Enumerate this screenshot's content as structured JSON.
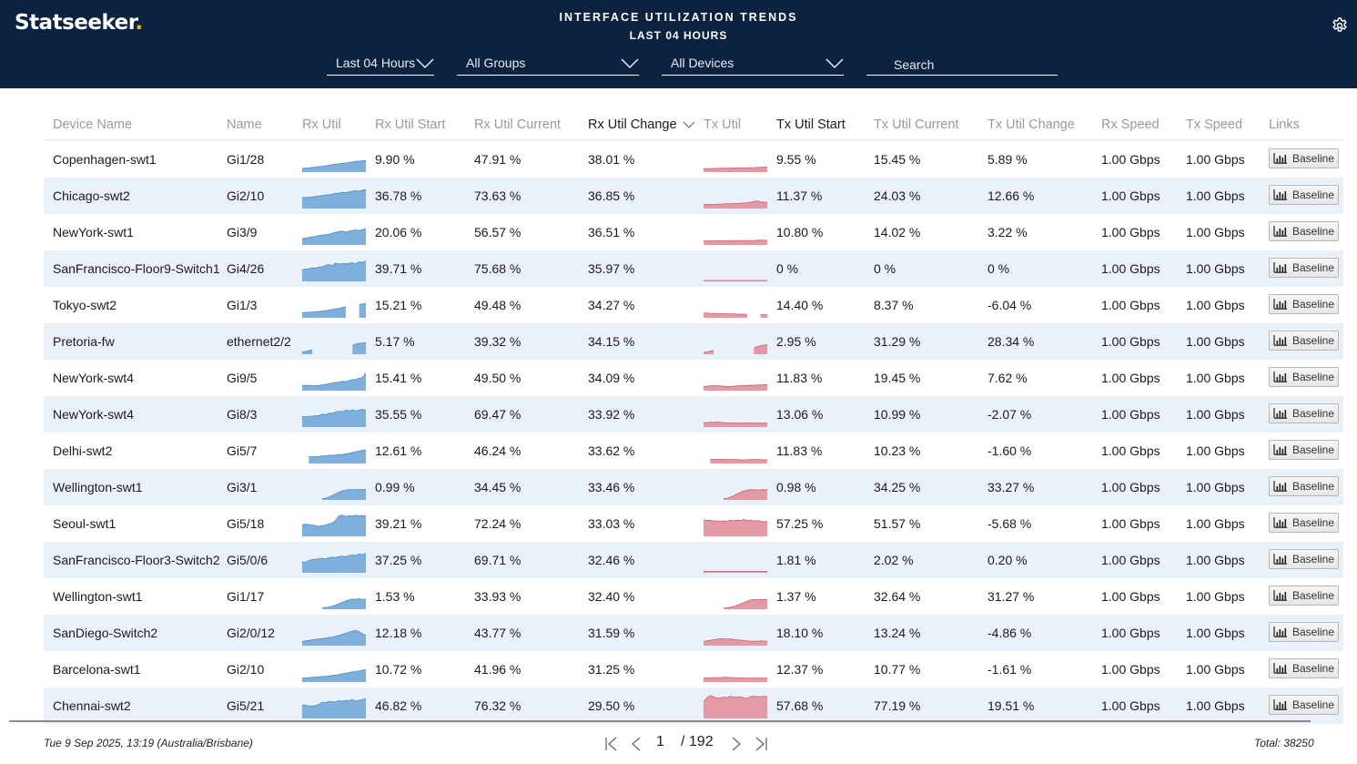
{
  "header": {
    "logo": "Statseeker",
    "logo_dot": ".",
    "title": "INTERFACE UTILIZATION TRENDS",
    "subtitle": "LAST 04 HOURS",
    "settings_icon": "gear-icon",
    "time_range": "Last 04 Hours",
    "group": "All Groups",
    "device": "All Devices",
    "search_placeholder": "Search",
    "search_value": ""
  },
  "colors": {
    "header_bg": "#0b2341",
    "logo_dot": "#f5b800",
    "rx_fill": "#7fb0db",
    "rx_line": "#4f8cc4",
    "tx_fill": "#e39aa6",
    "tx_line": "#cc5f72",
    "alt_row": "#eaf1f8"
  },
  "table": {
    "columns": [
      "Device Name",
      "Name",
      "Rx Util",
      "Rx Util Start",
      "Rx Util Current",
      "Rx Util Change",
      "Tx Util",
      "Tx Util Start",
      "Tx Util Current",
      "Tx Util Change",
      "Rx Speed",
      "Tx Speed",
      "Links"
    ],
    "sorted_column": "Rx Util Change",
    "sort_direction": "descending",
    "rows": [
      {
        "device": "Copenhagen-swt1",
        "name": "Gi1/28",
        "rx_start": "9.90 %",
        "rx_current": "47.91 %",
        "rx_change": "38.01 %",
        "tx_start": "9.55 %",
        "tx_current": "15.45 %",
        "tx_change": "5.89 %",
        "rx_speed": "1.00 Gbps",
        "tx_speed": "1.00 Gbps",
        "link": "Baseline",
        "rx_trend": [
          10,
          11,
          12,
          14,
          15,
          17,
          18,
          20,
          22,
          24,
          26,
          27,
          29,
          30,
          32,
          34,
          36,
          37,
          38,
          39
        ],
        "tx_trend": [
          9,
          9,
          10,
          10,
          10,
          11,
          11,
          11,
          11,
          12,
          12,
          12,
          12,
          12,
          13,
          13,
          14,
          14,
          15,
          15
        ]
      },
      {
        "device": "Chicago-swt2",
        "name": "Gi2/10",
        "rx_start": "36.78 %",
        "rx_current": "73.63 %",
        "rx_change": "36.85 %",
        "tx_start": "11.37 %",
        "tx_current": "24.03 %",
        "tx_change": "12.66 %",
        "rx_speed": "1.00 Gbps",
        "tx_speed": "1.00 Gbps",
        "link": "Baseline",
        "rx_trend": [
          37,
          37,
          38,
          39,
          41,
          42,
          44,
          46,
          47,
          49,
          52,
          53,
          56,
          55,
          58,
          60,
          62,
          60,
          64,
          66
        ],
        "tx_trend": [
          11,
          11,
          12,
          12,
          12,
          13,
          13,
          14,
          14,
          15,
          15,
          16,
          17,
          18,
          20,
          22,
          25,
          21,
          20,
          19
        ]
      },
      {
        "device": "NewYork-swt1",
        "name": "Gi3/9",
        "rx_start": "20.06 %",
        "rx_current": "56.57 %",
        "rx_change": "36.51 %",
        "tx_start": "10.80 %",
        "tx_current": "14.02 %",
        "tx_change": "3.22 %",
        "rx_speed": "1.00 Gbps",
        "tx_speed": "1.00 Gbps",
        "link": "Baseline",
        "rx_trend": [
          20,
          22,
          24,
          26,
          28,
          31,
          33,
          34,
          36,
          40,
          43,
          46,
          48,
          44,
          47,
          50,
          52,
          49,
          53,
          56
        ],
        "tx_trend": [
          11,
          11,
          11,
          12,
          12,
          12,
          12,
          12,
          13,
          13,
          13,
          13,
          13,
          13,
          13,
          13,
          14,
          14,
          14,
          14
        ]
      },
      {
        "device": "SanFrancisco-Floor9-Switch1",
        "name": "Gi4/26",
        "rx_start": "39.71 %",
        "rx_current": "75.68 %",
        "rx_change": "35.97 %",
        "tx_start": "0 %",
        "tx_current": "0 %",
        "tx_change": "0 %",
        "rx_speed": "1.00 Gbps",
        "tx_speed": "1.00 Gbps",
        "link": "Baseline",
        "rx_trend": [
          40,
          42,
          43,
          46,
          45,
          49,
          50,
          55,
          58,
          53,
          64,
          60,
          62,
          61,
          63,
          65,
          60,
          68,
          66,
          72
        ],
        "tx_trend": [
          0,
          0,
          0,
          0,
          0,
          0,
          0,
          0,
          0,
          0,
          0,
          0,
          0,
          0,
          0,
          0,
          0,
          0,
          0,
          0
        ]
      },
      {
        "device": "Tokyo-swt2",
        "name": "Gi1/3",
        "rx_start": "15.21 %",
        "rx_current": "49.48 %",
        "rx_change": "34.27 %",
        "tx_start": "14.40 %",
        "tx_current": "8.37 %",
        "tx_change": "-6.04 %",
        "rx_speed": "1.00 Gbps",
        "tx_speed": "1.00 Gbps",
        "link": "Baseline",
        "rx_trend": [
          15,
          16,
          17,
          18,
          19,
          20,
          22,
          23,
          25,
          27,
          29,
          31,
          34,
          37,
          null,
          null,
          null,
          45,
          48,
          49
        ],
        "tx_trend": [
          14,
          14,
          13,
          13,
          12,
          12,
          12,
          11,
          11,
          11,
          10,
          10,
          10,
          9,
          null,
          null,
          null,
          9,
          8,
          8
        ]
      },
      {
        "device": "Pretoria-fw",
        "name": "ethernet2/2",
        "rx_start": "5.17 %",
        "rx_current": "39.32 %",
        "rx_change": "34.15 %",
        "tx_start": "2.95 %",
        "tx_current": "31.29 %",
        "tx_change": "28.34 %",
        "rx_speed": "1.00 Gbps",
        "tx_speed": "1.00 Gbps",
        "link": "Baseline",
        "rx_trend": [
          5,
          7,
          10,
          13,
          null,
          null,
          null,
          null,
          null,
          null,
          null,
          null,
          null,
          null,
          null,
          28,
          34,
          37,
          38,
          39
        ],
        "tx_trend": [
          3,
          5,
          8,
          11,
          null,
          null,
          null,
          null,
          null,
          null,
          null,
          null,
          null,
          null,
          null,
          19,
          24,
          28,
          30,
          31
        ]
      },
      {
        "device": "NewYork-swt4",
        "name": "Gi9/5",
        "rx_start": "15.41 %",
        "rx_current": "49.50 %",
        "rx_change": "34.09 %",
        "tx_start": "11.83 %",
        "tx_current": "19.45 %",
        "tx_change": "7.62 %",
        "rx_speed": "1.00 Gbps",
        "tx_speed": "1.00 Gbps",
        "link": "Baseline",
        "rx_trend": [
          15,
          16,
          16,
          15,
          15,
          16,
          18,
          20,
          22,
          25,
          27,
          28,
          31,
          30,
          34,
          37,
          38,
          42,
          45,
          62
        ],
        "tx_trend": [
          12,
          13,
          14,
          15,
          15,
          14,
          13,
          12,
          12,
          13,
          14,
          15,
          15,
          16,
          16,
          17,
          17,
          18,
          18,
          19
        ]
      },
      {
        "device": "NewYork-swt4",
        "name": "Gi8/3",
        "rx_start": "35.55 %",
        "rx_current": "69.47 %",
        "rx_change": "33.92 %",
        "tx_start": "13.06 %",
        "tx_current": "10.99 %",
        "tx_change": "-2.07 %",
        "rx_speed": "1.00 Gbps",
        "tx_speed": "1.00 Gbps",
        "link": "Baseline",
        "rx_trend": [
          36,
          34,
          35,
          37,
          38,
          39,
          44,
          42,
          48,
          47,
          52,
          55,
          53,
          58,
          56,
          60,
          55,
          59,
          62,
          57
        ],
        "tx_trend": [
          13,
          13,
          14,
          14,
          15,
          14,
          13,
          12,
          12,
          12,
          11,
          11,
          12,
          12,
          12,
          11,
          11,
          11,
          11,
          11
        ]
      },
      {
        "device": "Delhi-swt2",
        "name": "Gi5/7",
        "rx_start": "12.61 %",
        "rx_current": "46.24 %",
        "rx_change": "33.62 %",
        "tx_start": "11.83 %",
        "tx_current": "10.23 %",
        "tx_change": "-1.60 %",
        "rx_speed": "1.00 Gbps",
        "tx_speed": "1.00 Gbps",
        "link": "Baseline",
        "rx_trend": [
          null,
          null,
          22,
          21,
          22,
          23,
          24,
          25,
          27,
          26,
          28,
          30,
          29,
          32,
          34,
          37,
          40,
          42,
          45,
          46
        ],
        "tx_trend": [
          null,
          null,
          11,
          12,
          12,
          12,
          12,
          11,
          11,
          11,
          11,
          10,
          10,
          10,
          11,
          11,
          11,
          11,
          10,
          10
        ]
      },
      {
        "device": "Wellington-swt1",
        "name": "Gi3/1",
        "rx_start": "0.99 %",
        "rx_current": "34.45 %",
        "rx_change": "33.46 %",
        "tx_start": "0.98 %",
        "tx_current": "34.25 %",
        "tx_change": "33.27 %",
        "rx_speed": "1.00 Gbps",
        "tx_speed": "1.00 Gbps",
        "link": "Baseline",
        "rx_trend": [
          null,
          null,
          null,
          null,
          null,
          null,
          1,
          3,
          7,
          13,
          19,
          25,
          30,
          33,
          35,
          34,
          34,
          35,
          34,
          35
        ],
        "tx_trend": [
          null,
          null,
          null,
          null,
          null,
          null,
          1,
          3,
          7,
          12,
          18,
          24,
          29,
          32,
          34,
          34,
          33,
          34,
          34,
          34
        ]
      },
      {
        "device": "Seoul-swt1",
        "name": "Gi5/18",
        "rx_start": "39.21 %",
        "rx_current": "72.24 %",
        "rx_change": "33.03 %",
        "tx_start": "57.25 %",
        "tx_current": "51.57 %",
        "tx_change": "-5.68 %",
        "rx_speed": "1.00 Gbps",
        "tx_speed": "1.00 Gbps",
        "link": "Baseline",
        "rx_trend": [
          40,
          41,
          40,
          38,
          36,
          33,
          36,
          38,
          42,
          46,
          55,
          72,
          74,
          70,
          73,
          71,
          74,
          72,
          73,
          72
        ],
        "tx_trend": [
          57,
          55,
          56,
          52,
          54,
          51,
          54,
          52,
          56,
          53,
          56,
          55,
          58,
          54,
          57,
          53,
          55,
          52,
          50,
          52
        ]
      },
      {
        "device": "SanFrancisco-Floor3-Switch2",
        "name": "Gi5/0/6",
        "rx_start": "37.25 %",
        "rx_current": "69.71 %",
        "rx_change": "32.46 %",
        "tx_start": "1.81 %",
        "tx_current": "2.02 %",
        "tx_change": "0.20 %",
        "rx_speed": "1.00 Gbps",
        "tx_speed": "1.00 Gbps",
        "link": "Baseline",
        "rx_trend": [
          37,
          35,
          42,
          45,
          46,
          48,
          50,
          47,
          52,
          54,
          52,
          56,
          58,
          55,
          60,
          62,
          60,
          66,
          63,
          68
        ],
        "tx_trend": [
          2,
          2,
          2,
          2,
          2,
          2,
          2,
          2,
          2,
          2,
          2,
          2,
          2,
          2,
          2,
          2,
          2,
          2,
          2,
          2
        ]
      },
      {
        "device": "Wellington-swt1",
        "name": "Gi1/17",
        "rx_start": "1.53 %",
        "rx_current": "33.93 %",
        "rx_change": "32.40 %",
        "tx_start": "1.37 %",
        "tx_current": "32.64 %",
        "tx_change": "31.27 %",
        "rx_speed": "1.00 Gbps",
        "tx_speed": "1.00 Gbps",
        "link": "Baseline",
        "rx_trend": [
          null,
          null,
          null,
          null,
          null,
          null,
          2,
          3,
          5,
          8,
          12,
          17,
          22,
          27,
          31,
          34,
          33,
          35,
          32,
          34
        ],
        "tx_trend": [
          null,
          null,
          null,
          null,
          null,
          null,
          1,
          2,
          4,
          7,
          11,
          16,
          21,
          26,
          30,
          32,
          31,
          33,
          31,
          33
        ]
      },
      {
        "device": "SanDiego-Switch2",
        "name": "Gi2/0/12",
        "rx_start": "12.18 %",
        "rx_current": "43.77 %",
        "rx_change": "31.59 %",
        "tx_start": "18.10 %",
        "tx_current": "13.24 %",
        "tx_change": "-4.86 %",
        "rx_speed": "1.00 Gbps",
        "tx_speed": "1.00 Gbps",
        "link": "Baseline",
        "rx_trend": [
          12,
          14,
          16,
          18,
          20,
          21,
          22,
          24,
          26,
          28,
          31,
          34,
          38,
          42,
          46,
          50,
          52,
          48,
          40,
          34
        ],
        "tx_trend": [
          12,
          14,
          16,
          18,
          20,
          22,
          21,
          20,
          21,
          19,
          18,
          17,
          15,
          14,
          13,
          13,
          13,
          14,
          13,
          13
        ]
      },
      {
        "device": "Barcelona-swt1",
        "name": "Gi2/10",
        "rx_start": "10.72 %",
        "rx_current": "41.96 %",
        "rx_change": "31.25 %",
        "tx_start": "12.37 %",
        "tx_current": "10.77 %",
        "tx_change": "-1.61 %",
        "rx_speed": "1.00 Gbps",
        "tx_speed": "1.00 Gbps",
        "link": "Baseline",
        "rx_trend": [
          11,
          12,
          13,
          14,
          15,
          16,
          17,
          18,
          19,
          21,
          22,
          24,
          27,
          29,
          31,
          35,
          34,
          38,
          40,
          42
        ],
        "tx_trend": [
          12,
          12,
          12,
          13,
          13,
          13,
          14,
          14,
          13,
          13,
          12,
          12,
          11,
          11,
          11,
          11,
          11,
          11,
          11,
          11
        ]
      },
      {
        "device": "Chennai-swt2",
        "name": "Gi5/21",
        "rx_start": "46.82 %",
        "rx_current": "76.32 %",
        "rx_change": "29.50 %",
        "tx_start": "57.68 %",
        "tx_current": "77.19 %",
        "tx_change": "19.51 %",
        "rx_speed": "1.00 Gbps",
        "tx_speed": "1.00 Gbps",
        "link": "Baseline",
        "rx_trend": [
          47,
          45,
          43,
          42,
          44,
          48,
          56,
          54,
          60,
          57,
          58,
          62,
          60,
          63,
          62,
          66,
          60,
          64,
          65,
          70
        ],
        "tx_trend": [
          58,
          72,
          80,
          76,
          71,
          72,
          75,
          73,
          78,
          74,
          75,
          76,
          72,
          70,
          77,
          78,
          77,
          76,
          78,
          77
        ]
      }
    ]
  },
  "footer": {
    "timestamp": "Tue 9 Sep 2025, 13:19 (Australia/Brisbane)",
    "current_page": "1",
    "total_pages": "/ 192",
    "total": "Total: 38250"
  }
}
